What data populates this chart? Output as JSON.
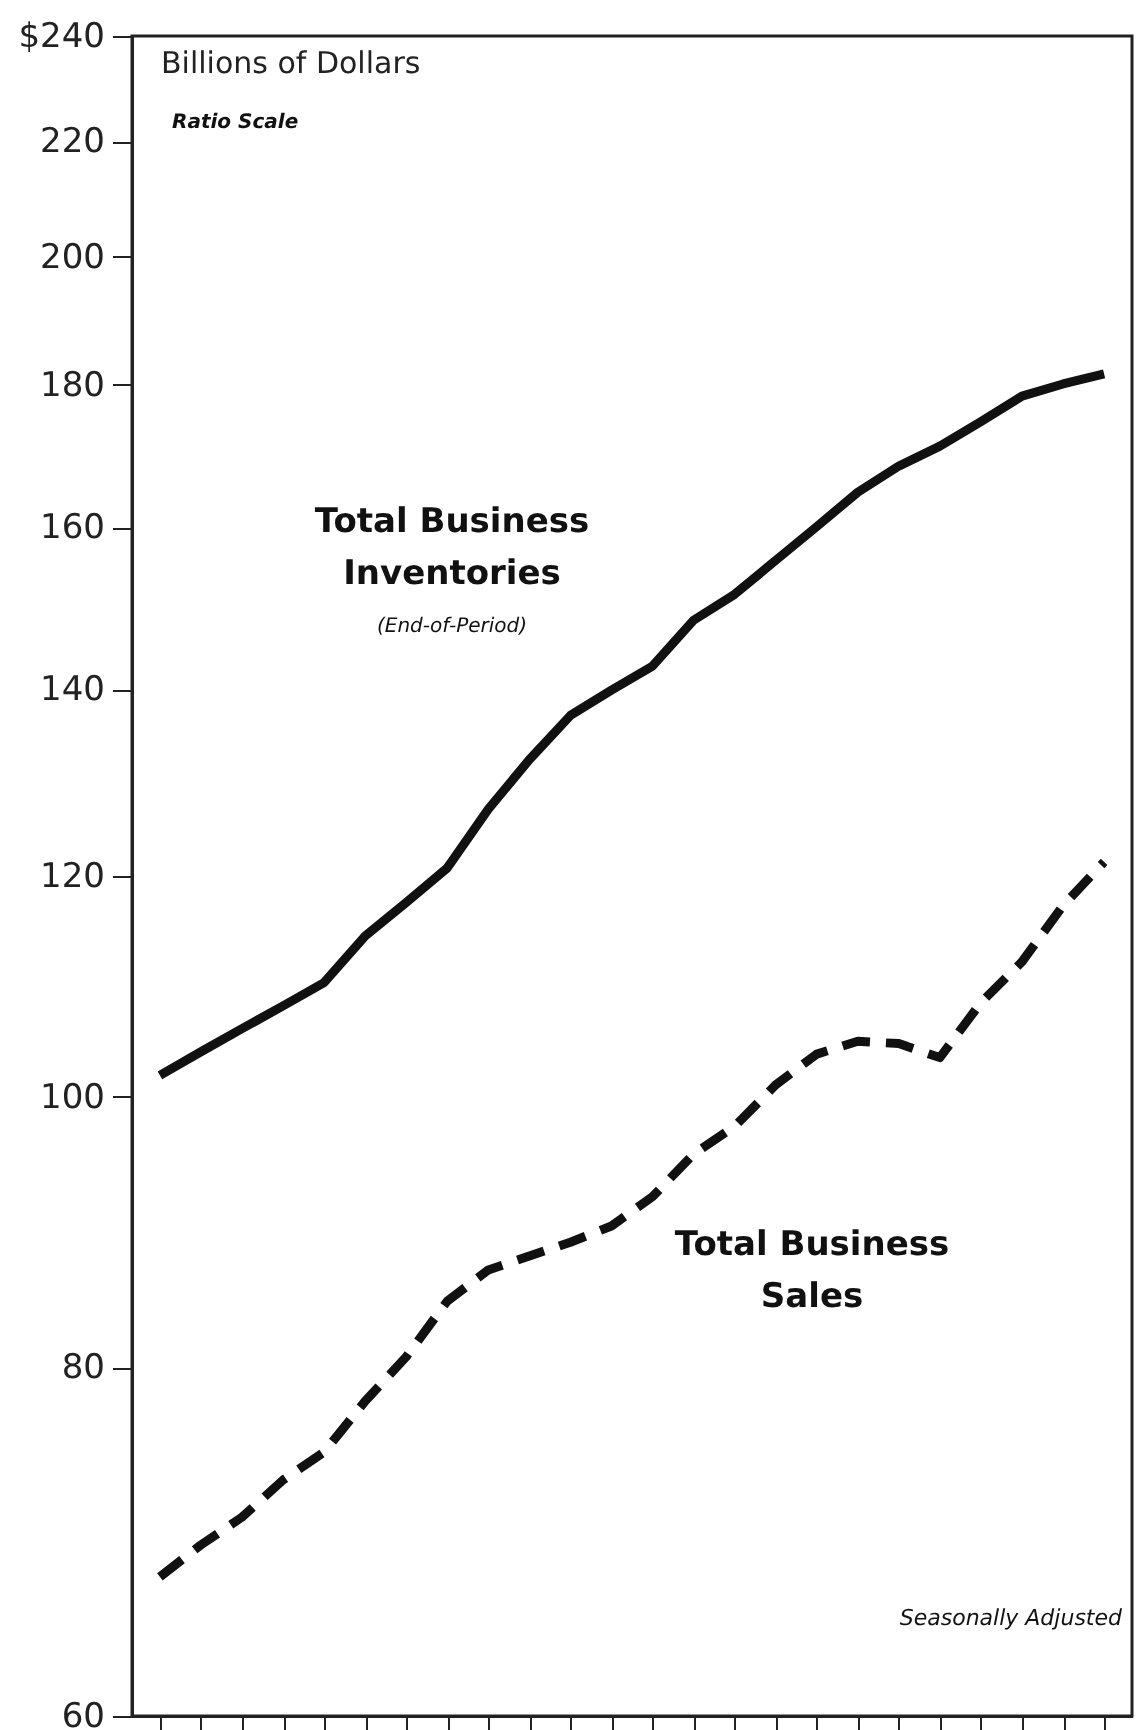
{
  "chart_data": {
    "type": "line",
    "log": "y",
    "ylabel": "Billions of Dollars",
    "annotations": [
      "Ratio Scale",
      "(End-of-Period)",
      "Seasonally Adjusted"
    ],
    "categories": [
      null,
      null,
      null,
      null,
      null,
      null,
      null,
      null,
      null,
      null,
      null,
      null,
      null,
      null,
      null,
      null,
      null,
      null,
      null,
      null,
      null,
      null,
      null,
      null
    ],
    "series": [
      {
        "name": "Total Business Inventories",
        "color": "#111111",
        "line_style": "solid",
        "values": [
          101.8,
          103.8,
          105.8,
          107.8,
          109.9,
          114.2,
          117.4,
          120.8,
          126.8,
          132.1,
          137.0,
          139.9,
          142.7,
          148.2,
          151.4,
          155.7,
          160.1,
          164.7,
          168.3,
          171.1,
          174.6,
          178.3,
          180.1,
          181.6
        ]
      },
      {
        "name": "Total Business Sales",
        "color": "#111111",
        "line_style": "dashed",
        "values": [
          67.3,
          69.1,
          70.7,
          72.9,
          74.6,
          77.8,
          80.7,
          84.5,
          86.7,
          87.7,
          88.7,
          89.9,
          92.1,
          95.4,
          97.6,
          101.0,
          103.6,
          104.7,
          104.5,
          103.3,
          108.1,
          111.8,
          117.1,
          121.4
        ]
      }
    ],
    "ylim": [
      60,
      240
    ],
    "yticks": [
      60,
      80,
      100,
      120,
      140,
      160,
      180,
      200,
      220,
      {
        "value": 240,
        "label": "$240"
      }
    ],
    "tick_labels": "y",
    "grid": false,
    "marker": "none"
  }
}
